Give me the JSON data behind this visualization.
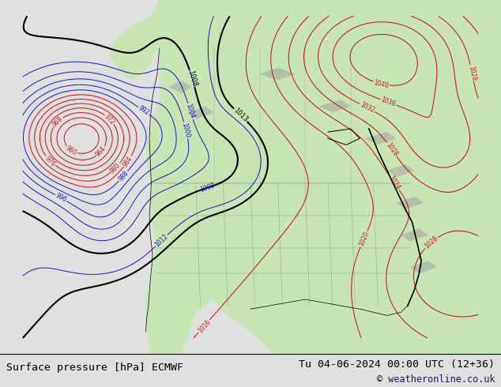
{
  "title_left": "Surface pressure [hPa] ECMWF",
  "title_right": "Tu 04-06-2024 00:00 UTC (12+36)",
  "copyright": "© weatheronline.co.uk",
  "ocean_color": "#e0e0e0",
  "land_color": "#c8e6b4",
  "gray_land_color": "#b0b0b0",
  "bottom_bar_color": "#ffffff",
  "bottom_bar_height": 0.085,
  "text_color": "#1a1a6e",
  "font_size_title": 9.5,
  "font_size_copy": 8.5
}
